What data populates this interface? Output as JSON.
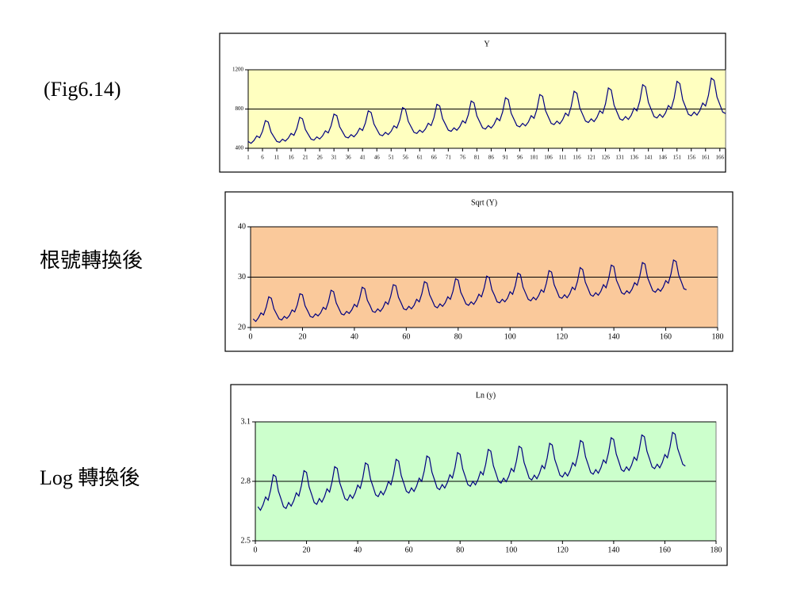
{
  "labels": [
    "(Fig6.14)",
    "根號轉換後",
    "Log 轉換後"
  ],
  "chart_data": [
    {
      "type": "line",
      "title": "Y",
      "color": "#000080",
      "plot_color": "#ffffc0",
      "grid": true,
      "x": [
        1,
        2,
        3,
        4,
        5,
        6,
        7,
        8,
        9,
        10,
        11,
        12,
        13,
        14,
        15,
        16,
        17,
        18,
        19,
        20,
        21,
        22,
        23,
        24,
        25,
        26,
        27,
        28,
        29,
        30,
        31,
        32,
        33,
        34,
        35,
        36,
        37,
        38,
        39,
        40,
        41,
        42,
        43,
        44,
        45,
        46,
        47,
        48,
        49,
        50,
        51,
        52,
        53,
        54,
        55,
        56,
        57,
        58,
        59,
        60,
        61,
        62,
        63,
        64,
        65,
        66,
        67,
        68,
        69,
        70,
        71,
        72,
        73,
        74,
        75,
        76,
        77,
        78,
        79,
        80,
        81,
        82,
        83,
        84,
        85,
        86,
        87,
        88,
        89,
        90,
        91,
        92,
        93,
        94,
        95,
        96,
        97,
        98,
        99,
        100,
        101,
        102,
        103,
        104,
        105,
        106,
        107,
        108,
        109,
        110,
        111,
        112,
        113,
        114,
        115,
        116,
        117,
        118,
        119,
        120,
        121,
        122,
        123,
        124,
        125,
        126,
        127,
        128,
        129,
        130,
        131,
        132,
        133,
        134,
        135,
        136,
        137,
        138,
        139,
        140,
        141,
        142,
        143,
        144,
        145,
        146,
        147,
        148,
        149,
        150,
        151,
        152,
        153,
        154,
        155,
        156,
        157,
        158,
        159,
        160,
        161,
        162,
        163,
        164,
        165,
        166,
        167,
        168
      ],
      "values": [
        470,
        451,
        479,
        526,
        508,
        573,
        682,
        667,
        564,
        517,
        470,
        461,
        493,
        473,
        503,
        552,
        532,
        601,
        715,
        700,
        592,
        542,
        493,
        483,
        516,
        495,
        526,
        578,
        557,
        630,
        748,
        733,
        619,
        568,
        516,
        506,
        539,
        517,
        550,
        604,
        582,
        658,
        782,
        765,
        647,
        593,
        539,
        528,
        562,
        540,
        573,
        629,
        607,
        686,
        815,
        798,
        674,
        618,
        562,
        551,
        585,
        562,
        597,
        655,
        632,
        714,
        848,
        831,
        702,
        644,
        585,
        573,
        608,
        584,
        620,
        681,
        657,
        742,
        882,
        863,
        730,
        669,
        608,
        596,
        631,
        606,
        644,
        707,
        681,
        770,
        915,
        896,
        757,
        694,
        631,
        618,
        654,
        628,
        667,
        732,
        706,
        798,
        948,
        929,
        785,
        719,
        654,
        641,
        677,
        650,
        691,
        758,
        731,
        826,
        982,
        961,
        812,
        745,
        677,
        663,
        700,
        672,
        714,
        784,
        756,
        854,
        1015,
        994,
        840,
        770,
        700,
        686,
        723,
        694,
        737,
        810,
        781,
        882,
        1048,
        1027,
        868,
        795,
        723,
        709,
        746,
        716,
        761,
        836,
        806,
        910,
        1082,
        1059,
        895,
        821,
        746,
        731,
        769,
        738,
        784,
        861,
        831,
        938,
        1115,
        1092,
        923,
        846,
        769,
        754
      ],
      "xlim": [
        1,
        168
      ],
      "xticks": [
        1,
        6,
        11,
        16,
        21,
        26,
        31,
        36,
        41,
        46,
        51,
        56,
        61,
        66,
        71,
        76,
        81,
        86,
        91,
        96,
        101,
        106,
        111,
        116,
        121,
        126,
        131,
        136,
        141,
        146,
        151,
        156,
        161,
        166
      ],
      "ylim": [
        400,
        1200
      ],
      "yticks": [
        400,
        800,
        1200
      ]
    },
    {
      "type": "line",
      "title": "Sqrt (Y)",
      "color": "#000080",
      "plot_color": "#fac99b",
      "grid": true,
      "x": [
        1,
        2,
        3,
        4,
        5,
        6,
        7,
        8,
        9,
        10,
        11,
        12,
        13,
        14,
        15,
        16,
        17,
        18,
        19,
        20,
        21,
        22,
        23,
        24,
        25,
        26,
        27,
        28,
        29,
        30,
        31,
        32,
        33,
        34,
        35,
        36,
        37,
        38,
        39,
        40,
        41,
        42,
        43,
        44,
        45,
        46,
        47,
        48,
        49,
        50,
        51,
        52,
        53,
        54,
        55,
        56,
        57,
        58,
        59,
        60,
        61,
        62,
        63,
        64,
        65,
        66,
        67,
        68,
        69,
        70,
        71,
        72,
        73,
        74,
        75,
        76,
        77,
        78,
        79,
        80,
        81,
        82,
        83,
        84,
        85,
        86,
        87,
        88,
        89,
        90,
        91,
        92,
        93,
        94,
        95,
        96,
        97,
        98,
        99,
        100,
        101,
        102,
        103,
        104,
        105,
        106,
        107,
        108,
        109,
        110,
        111,
        112,
        113,
        114,
        115,
        116,
        117,
        118,
        119,
        120,
        121,
        122,
        123,
        124,
        125,
        126,
        127,
        128,
        129,
        130,
        131,
        132,
        133,
        134,
        135,
        136,
        137,
        138,
        139,
        140,
        141,
        142,
        143,
        144,
        145,
        146,
        147,
        148,
        149,
        150,
        151,
        152,
        153,
        154,
        155,
        156,
        157,
        158,
        159,
        160,
        161,
        162,
        163,
        164,
        165,
        166,
        167,
        168
      ],
      "values": [
        21.7,
        21.2,
        21.9,
        22.9,
        22.5,
        24.0,
        26.1,
        25.8,
        23.7,
        22.7,
        21.7,
        21.5,
        22.2,
        21.8,
        22.4,
        23.5,
        23.1,
        24.5,
        26.7,
        26.5,
        24.3,
        23.3,
        22.2,
        22.0,
        22.7,
        22.3,
        22.9,
        24.0,
        23.6,
        25.1,
        27.4,
        27.1,
        24.9,
        23.8,
        22.7,
        22.5,
        23.2,
        22.8,
        23.5,
        24.6,
        24.1,
        25.7,
        28.0,
        27.7,
        25.4,
        24.4,
        23.2,
        23.0,
        23.7,
        23.2,
        23.9,
        25.1,
        24.6,
        26.2,
        28.5,
        28.3,
        26.0,
        24.9,
        23.7,
        23.5,
        24.2,
        23.7,
        24.4,
        25.6,
        25.1,
        26.7,
        29.1,
        28.8,
        26.5,
        25.4,
        24.2,
        23.9,
        24.7,
        24.2,
        24.9,
        26.1,
        25.6,
        27.2,
        29.7,
        29.4,
        27.0,
        25.9,
        24.7,
        24.4,
        25.1,
        24.6,
        25.4,
        26.6,
        26.1,
        27.8,
        30.2,
        29.9,
        27.5,
        26.4,
        25.1,
        24.9,
        25.6,
        25.1,
        25.8,
        27.1,
        26.6,
        28.3,
        30.8,
        30.5,
        28.0,
        26.8,
        25.6,
        25.3,
        26.0,
        25.5,
        26.3,
        27.5,
        27.0,
        28.8,
        31.3,
        31.0,
        28.5,
        27.3,
        26.0,
        25.8,
        26.5,
        25.9,
        26.7,
        28.0,
        27.5,
        29.2,
        31.9,
        31.5,
        29.0,
        27.8,
        26.5,
        26.2,
        26.9,
        26.4,
        27.2,
        28.5,
        27.9,
        29.7,
        32.4,
        32.1,
        29.4,
        28.2,
        26.9,
        26.6,
        27.3,
        26.8,
        27.6,
        28.9,
        28.4,
        30.2,
        32.9,
        32.6,
        29.9,
        28.6,
        27.3,
        27.0,
        27.7,
        27.2,
        28.0,
        29.3,
        28.8,
        30.6,
        33.4,
        33.1,
        30.4,
        29.1,
        27.7,
        27.5
      ],
      "xlim": [
        0,
        180
      ],
      "xticks": [
        0,
        20,
        40,
        60,
        80,
        100,
        120,
        140,
        160,
        180
      ],
      "ylim": [
        20,
        40
      ],
      "yticks": [
        20,
        30,
        40
      ]
    },
    {
      "type": "line",
      "title": "Ln (y)",
      "color": "#000080",
      "plot_color": "#ccffcc",
      "grid": true,
      "x": [
        1,
        2,
        3,
        4,
        5,
        6,
        7,
        8,
        9,
        10,
        11,
        12,
        13,
        14,
        15,
        16,
        17,
        18,
        19,
        20,
        21,
        22,
        23,
        24,
        25,
        26,
        27,
        28,
        29,
        30,
        31,
        32,
        33,
        34,
        35,
        36,
        37,
        38,
        39,
        40,
        41,
        42,
        43,
        44,
        45,
        46,
        47,
        48,
        49,
        50,
        51,
        52,
        53,
        54,
        55,
        56,
        57,
        58,
        59,
        60,
        61,
        62,
        63,
        64,
        65,
        66,
        67,
        68,
        69,
        70,
        71,
        72,
        73,
        74,
        75,
        76,
        77,
        78,
        79,
        80,
        81,
        82,
        83,
        84,
        85,
        86,
        87,
        88,
        89,
        90,
        91,
        92,
        93,
        94,
        95,
        96,
        97,
        98,
        99,
        100,
        101,
        102,
        103,
        104,
        105,
        106,
        107,
        108,
        109,
        110,
        111,
        112,
        113,
        114,
        115,
        116,
        117,
        118,
        119,
        120,
        121,
        122,
        123,
        124,
        125,
        126,
        127,
        128,
        129,
        130,
        131,
        132,
        133,
        134,
        135,
        136,
        137,
        138,
        139,
        140,
        141,
        142,
        143,
        144,
        145,
        146,
        147,
        148,
        149,
        150,
        151,
        152,
        153,
        154,
        155,
        156,
        157,
        158,
        159,
        160,
        161,
        162,
        163,
        164,
        165,
        166,
        167,
        168
      ],
      "values": [
        2.672,
        2.654,
        2.681,
        2.721,
        2.705,
        2.758,
        2.833,
        2.824,
        2.751,
        2.713,
        2.672,
        2.663,
        2.693,
        2.675,
        2.702,
        2.742,
        2.726,
        2.779,
        2.854,
        2.845,
        2.772,
        2.734,
        2.693,
        2.684,
        2.713,
        2.695,
        2.722,
        2.762,
        2.746,
        2.799,
        2.874,
        2.865,
        2.792,
        2.754,
        2.713,
        2.704,
        2.732,
        2.714,
        2.741,
        2.781,
        2.765,
        2.818,
        2.893,
        2.884,
        2.811,
        2.773,
        2.732,
        2.723,
        2.75,
        2.732,
        2.759,
        2.799,
        2.783,
        2.836,
        2.911,
        2.902,
        2.829,
        2.791,
        2.75,
        2.741,
        2.767,
        2.749,
        2.776,
        2.816,
        2.8,
        2.853,
        2.928,
        2.919,
        2.846,
        2.808,
        2.767,
        2.758,
        2.784,
        2.766,
        2.793,
        2.833,
        2.817,
        2.87,
        2.945,
        2.936,
        2.863,
        2.825,
        2.784,
        2.775,
        2.8,
        2.782,
        2.809,
        2.849,
        2.833,
        2.886,
        2.961,
        2.952,
        2.879,
        2.841,
        2.8,
        2.791,
        2.816,
        2.798,
        2.825,
        2.865,
        2.849,
        2.902,
        2.977,
        2.968,
        2.895,
        2.857,
        2.816,
        2.807,
        2.831,
        2.813,
        2.84,
        2.88,
        2.864,
        2.917,
        2.992,
        2.983,
        2.91,
        2.872,
        2.831,
        2.822,
        2.845,
        2.827,
        2.854,
        2.894,
        2.878,
        2.931,
        3.006,
        2.997,
        2.924,
        2.886,
        2.845,
        2.836,
        2.859,
        2.841,
        2.868,
        2.908,
        2.892,
        2.945,
        3.02,
        3.011,
        2.938,
        2.9,
        2.859,
        2.85,
        2.873,
        2.855,
        2.882,
        2.922,
        2.906,
        2.959,
        3.034,
        3.025,
        2.952,
        2.914,
        2.873,
        2.864,
        2.886,
        2.868,
        2.895,
        2.935,
        2.919,
        2.972,
        3.047,
        3.038,
        2.965,
        2.927,
        2.886,
        2.877
      ],
      "xlim": [
        0,
        180
      ],
      "xticks": [
        0,
        20,
        40,
        60,
        80,
        100,
        120,
        140,
        160,
        180
      ],
      "ylim": [
        2.5,
        3.1
      ],
      "yticks": [
        2.5,
        2.8,
        3.1
      ]
    }
  ]
}
